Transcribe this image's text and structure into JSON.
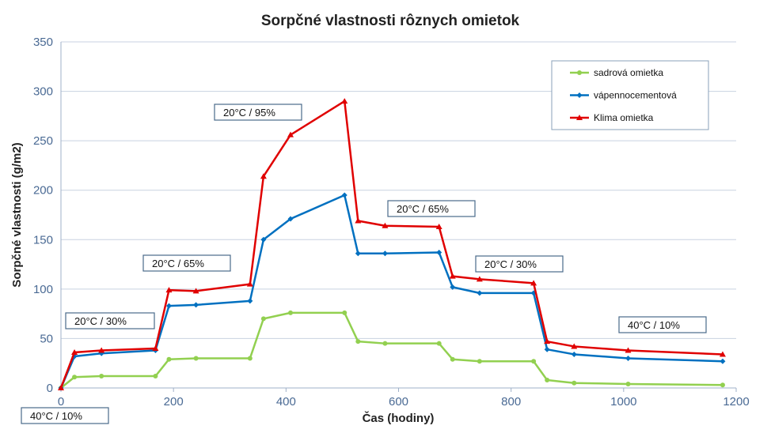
{
  "chart_data": {
    "type": "line",
    "title": "Sorpčné vlastnosti rôznych omietok",
    "xlabel": "Čas (hodiny)",
    "ylabel": "Sorpčné vlastnosti (g/m2)",
    "xlim": [
      0,
      1200
    ],
    "ylim": [
      0,
      350
    ],
    "xticks": [
      0,
      200,
      400,
      600,
      800,
      1000,
      1200
    ],
    "yticks": [
      0,
      50,
      100,
      150,
      200,
      250,
      300,
      350
    ],
    "grid": "horizontal",
    "legend": "top-right",
    "x": [
      0,
      24,
      72,
      168,
      192,
      240,
      336,
      360,
      408,
      504,
      528,
      576,
      672,
      696,
      744,
      840,
      864,
      912,
      1008,
      1176
    ],
    "series": [
      {
        "name": "sadrová omietka",
        "color": "#92d050",
        "marker": "circle",
        "values": [
          0,
          11,
          12,
          12,
          29,
          30,
          30,
          70,
          76,
          76,
          47,
          45,
          45,
          29,
          27,
          27,
          8,
          5,
          4,
          3
        ]
      },
      {
        "name": "vápennocementová",
        "color": "#0070c0",
        "marker": "diamond",
        "values": [
          0,
          32,
          35,
          38,
          83,
          84,
          88,
          150,
          171,
          195,
          136,
          136,
          137,
          102,
          96,
          96,
          39,
          34,
          30,
          27
        ]
      },
      {
        "name": "Klima omietka",
        "color": "#e00000",
        "marker": "triangle",
        "values": [
          0,
          36,
          38,
          40,
          99,
          98,
          105,
          214,
          256,
          290,
          169,
          164,
          163,
          113,
          110,
          106,
          47,
          42,
          38,
          34
        ]
      }
    ],
    "annotations": [
      "20°C / 30%",
      "20°C / 65%",
      "20°C / 95%",
      "20°C / 65%",
      "20°C / 30%",
      "40°C / 10%",
      "40°C / 10%"
    ]
  }
}
